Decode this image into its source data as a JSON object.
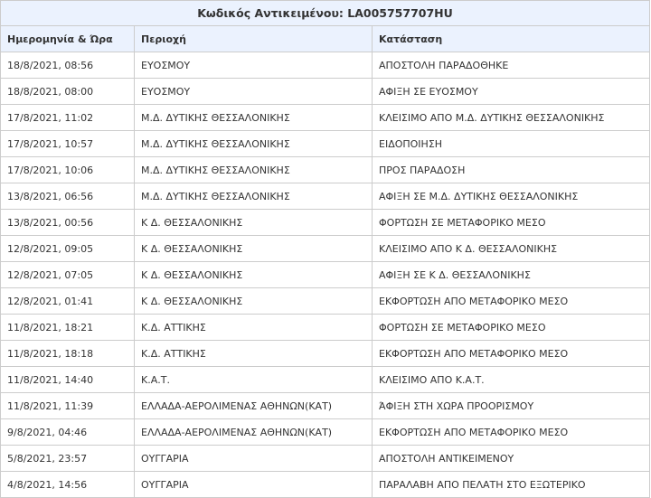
{
  "title": "Κωδικός Αντικειμένου: LA005757707HU",
  "headers": [
    "Ημερομηνία & Ώρα",
    "Περιοχή",
    "Κατάσταση"
  ],
  "rows": [
    [
      "18/8/2021, 08:56",
      "ΕΥΟΣΜΟΥ",
      "ΑΠΟΣΤΟΛΗ ΠΑΡΑΔΟΘΗΚΕ"
    ],
    [
      "18/8/2021, 08:00",
      "ΕΥΟΣΜΟΥ",
      "ΑΦΙΞΗ ΣΕ ΕΥΟΣΜΟΥ"
    ],
    [
      "17/8/2021, 11:02",
      "Μ.Δ. ΔΥΤΙΚΗΣ ΘΕΣΣΑΛΟΝΙΚΗΣ",
      "ΚΛΕΙΣΙΜΟ ΑΠΟ Μ.Δ. ΔΥΤΙΚΗΣ ΘΕΣΣΑΛΟΝΙΚΗΣ"
    ],
    [
      "17/8/2021, 10:57",
      "Μ.Δ. ΔΥΤΙΚΗΣ ΘΕΣΣΑΛΟΝΙΚΗΣ",
      "ΕΙΔΟΠΟΙΗΣΗ"
    ],
    [
      "17/8/2021, 10:06",
      "Μ.Δ. ΔΥΤΙΚΗΣ ΘΕΣΣΑΛΟΝΙΚΗΣ",
      "ΠΡΟΣ ΠΑΡΑΔΟΣΗ"
    ],
    [
      "13/8/2021, 06:56",
      "Μ.Δ. ΔΥΤΙΚΗΣ ΘΕΣΣΑΛΟΝΙΚΗΣ",
      "ΑΦΙΞΗ ΣΕ Μ.Δ. ΔΥΤΙΚΗΣ ΘΕΣΣΑΛΟΝΙΚΗΣ"
    ],
    [
      "13/8/2021, 00:56",
      "Κ Δ. ΘΕΣΣΑΛΟΝΙΚΗΣ",
      "ΦΟΡΤΩΣΗ ΣΕ ΜΕΤΑΦΟΡΙΚΟ ΜΕΣΟ"
    ],
    [
      "12/8/2021, 09:05",
      "Κ Δ. ΘΕΣΣΑΛΟΝΙΚΗΣ",
      "ΚΛΕΙΣΙΜΟ ΑΠΟ Κ Δ. ΘΕΣΣΑΛΟΝΙΚΗΣ"
    ],
    [
      "12/8/2021, 07:05",
      "Κ Δ. ΘΕΣΣΑΛΟΝΙΚΗΣ",
      "ΑΦΙΞΗ ΣΕ Κ Δ. ΘΕΣΣΑΛΟΝΙΚΗΣ"
    ],
    [
      "12/8/2021, 01:41",
      "Κ Δ. ΘΕΣΣΑΛΟΝΙΚΗΣ",
      "ΕΚΦΟΡΤΩΣΗ ΑΠΟ ΜΕΤΑΦΟΡΙΚΟ ΜΕΣΟ"
    ],
    [
      "11/8/2021, 18:21",
      "Κ.Δ. ΑΤΤΙΚΗΣ",
      "ΦΟΡΤΩΣΗ ΣΕ ΜΕΤΑΦΟΡΙΚΟ ΜΕΣΟ"
    ],
    [
      "11/8/2021, 18:18",
      "Κ.Δ. ΑΤΤΙΚΗΣ",
      "ΕΚΦΟΡΤΩΣΗ ΑΠΟ ΜΕΤΑΦΟΡΙΚΟ ΜΕΣΟ"
    ],
    [
      "11/8/2021, 14:40",
      "Κ.Α.Τ.",
      "ΚΛΕΙΣΙΜΟ ΑΠΟ Κ.Α.Τ."
    ],
    [
      "11/8/2021, 11:39",
      "ΕΛΛΑΔΑ-ΑΕΡΟΛΙΜΕΝΑΣ ΑΘΗΝΩΝ(ΚΑΤ)",
      "ΆΦΙΞΗ ΣΤΗ ΧΩΡΑ ΠΡΟΟΡΙΣΜΟΥ"
    ],
    [
      "9/8/2021, 04:46",
      "ΕΛΛΑΔΑ-ΑΕΡΟΛΙΜΕΝΑΣ ΑΘΗΝΩΝ(ΚΑΤ)",
      "ΕΚΦΟΡΤΩΣΗ ΑΠΟ ΜΕΤΑΦΟΡΙΚΟ ΜΕΣΟ"
    ],
    [
      "5/8/2021, 23:57",
      "ΟΥΓΓΑΡΙΑ",
      "ΑΠΟΣΤΟΛΗ ΑΝΤΙΚΕΙΜΕΝΟΥ"
    ],
    [
      "4/8/2021, 14:56",
      "ΟΥΓΓΑΡΙΑ",
      "ΠΑΡΑΛΑΒΗ ΑΠΟ ΠΕΛΑΤΗ ΣΤΟ ΕΞΩΤΕΡΙΚΟ"
    ]
  ]
}
